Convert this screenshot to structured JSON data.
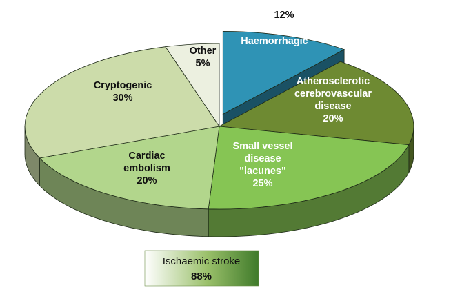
{
  "chart_data": {
    "type": "pie",
    "style": "3d-exploded",
    "slices": [
      {
        "name": "Haemorrhagic",
        "value": 12,
        "label_lines": [
          "Haemorrhagic"
        ],
        "value_label": "12%",
        "color": "#2f93b5",
        "exploded": true
      },
      {
        "name": "Atherosclerotic cerebrovascular disease",
        "value": 20,
        "label_lines": [
          "Atherosclerotic",
          "cerebrovascular",
          "disease"
        ],
        "value_label": "20%",
        "color": "#6e8a32"
      },
      {
        "name": "Small vessel disease \"lacunes\"",
        "value": 25,
        "label_lines": [
          "Small vessel",
          "disease",
          "\"lacunes\""
        ],
        "value_label": "25%",
        "color": "#86c554"
      },
      {
        "name": "Cardiac embolism",
        "value": 20,
        "label_lines": [
          "Cardiac",
          "embolism"
        ],
        "value_label": "20%",
        "color": "#b2d68c"
      },
      {
        "name": "Cryptogenic",
        "value": 30,
        "label_lines": [
          "Cryptogenic"
        ],
        "value_label": "30%",
        "color": "#ccdcaa"
      },
      {
        "name": "Other",
        "value": 5,
        "label_lines": [
          "Other"
        ],
        "value_label": "5%",
        "color": "#ecf0e0"
      }
    ],
    "group_label": {
      "title": "Ischaemic stroke",
      "value": "88%"
    }
  }
}
